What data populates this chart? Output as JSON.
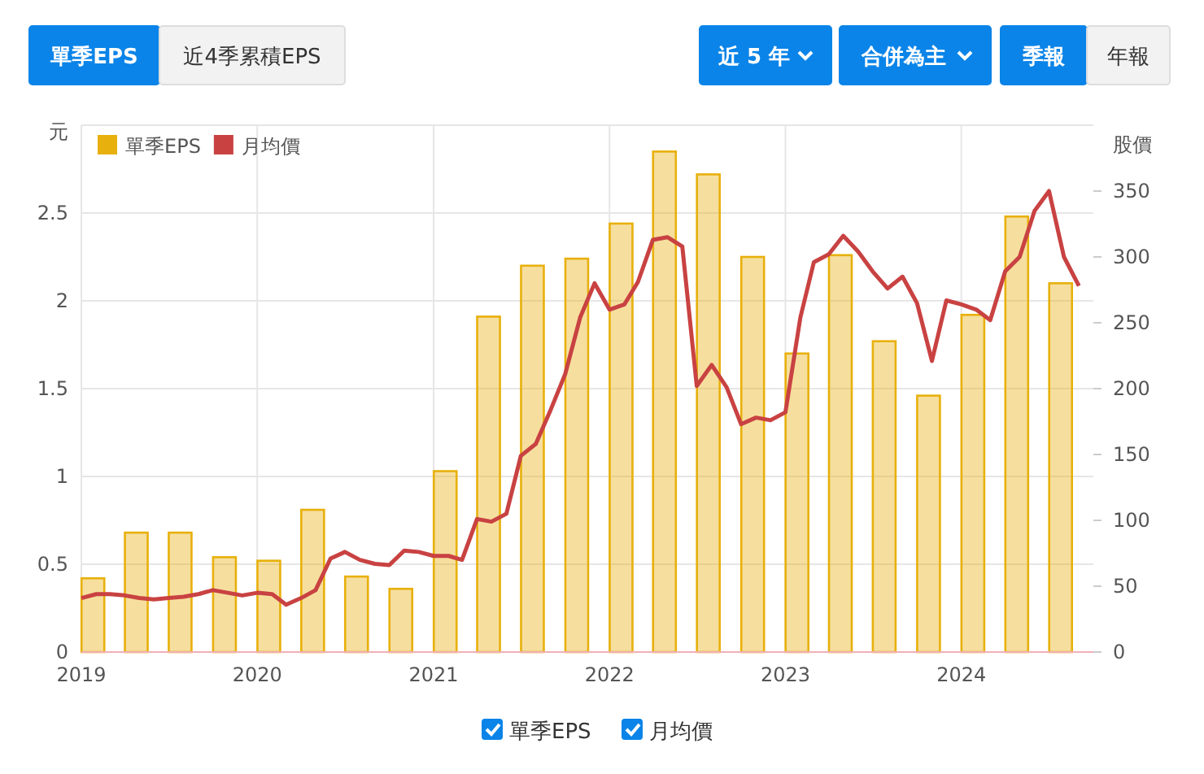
{
  "chart_data": {
    "type": "bar",
    "ylabel": "元",
    "y2label": "股價",
    "annotations": [
      "單季EPS",
      "近4季累積EPS",
      "近 5 年",
      "合併為主",
      "季報",
      "年報"
    ],
    "x": [
      "2019-01-25",
      "2019-04-25",
      "2019-07-25",
      "2019-10-25",
      "2020-01-25",
      "2020-04-25",
      "2020-07-25",
      "2020-10-25",
      "2021-01-25",
      "2021-04-25",
      "2021-07-25",
      "2021-10-25",
      "2022-01-25",
      "2022-04-25",
      "2022-07-25",
      "2022-10-25",
      "2023-01-25",
      "2023-04-25",
      "2023-07-25",
      "2023-10-25",
      "2024-01-25",
      "2024-04-25",
      "2024-07-25"
    ],
    "series": [
      {
        "name": "單季EPS",
        "color": "#e8b00c",
        "values": [
          0.42,
          0.68,
          0.68,
          0.54,
          0.52,
          0.81,
          0.43,
          0.36,
          1.03,
          1.91,
          2.2,
          2.24,
          2.44,
          2.85,
          2.72,
          2.25,
          1.7,
          2.26,
          1.77,
          1.46,
          1.92,
          2.48,
          2.1
        ]
      },
      {
        "name": "月均價",
        "type": "line",
        "axis": "y2",
        "color": "#c94242",
        "x": [
          "2019-01",
          "2019-02",
          "2019-03",
          "2019-04",
          "2019-05",
          "2019-06",
          "2019-07",
          "2019-08",
          "2019-09",
          "2019-10",
          "2019-11",
          "2019-12",
          "2020-01",
          "2020-02",
          "2020-03",
          "2020-04",
          "2020-05",
          "2020-06",
          "2020-07",
          "2020-08",
          "2020-09",
          "2020-10",
          "2020-11",
          "2020-12",
          "2021-01",
          "2021-02",
          "2021-03",
          "2021-04",
          "2021-05",
          "2021-06",
          "2021-07",
          "2021-08",
          "2021-09",
          "2021-10",
          "2021-11",
          "2021-12",
          "2022-01",
          "2022-02",
          "2022-03",
          "2022-04",
          "2022-05",
          "2022-06",
          "2022-07",
          "2022-08",
          "2022-09",
          "2022-10",
          "2022-11",
          "2022-12",
          "2023-01",
          "2023-02",
          "2023-03",
          "2023-04",
          "2023-05",
          "2023-06",
          "2023-07",
          "2023-08",
          "2023-09",
          "2023-10",
          "2023-11",
          "2023-12",
          "2024-01",
          "2024-02",
          "2024-03",
          "2024-04",
          "2024-05",
          "2024-06",
          "2024-07",
          "2024-08",
          "2024-09"
        ],
        "values": [
          41,
          44,
          44,
          43,
          41,
          40,
          41,
          42,
          44,
          47,
          45,
          43,
          45,
          44,
          36,
          41,
          47,
          71,
          76,
          70,
          67,
          66,
          77,
          76,
          73,
          73,
          70,
          101,
          99,
          105,
          149,
          158,
          184,
          211,
          254,
          280,
          260,
          264,
          281,
          313,
          315,
          308,
          202,
          218,
          201,
          173,
          178,
          176,
          182,
          254,
          296,
          302,
          316,
          304,
          289,
          276,
          285,
          265,
          221,
          267,
          264,
          260,
          252,
          289,
          300,
          335,
          350,
          300,
          278
        ]
      }
    ],
    "xlim": [
      "2019-01",
      "2024-10"
    ],
    "xticks": [
      {
        "value": "2019",
        "label": "2019"
      },
      {
        "value": "2020",
        "label": "2020"
      },
      {
        "value": "2021",
        "label": "2021"
      },
      {
        "value": "2022",
        "label": "2022"
      },
      {
        "value": "2023",
        "label": "2023"
      },
      {
        "value": "2024",
        "label": "2024"
      }
    ],
    "ylim": [
      0,
      3
    ],
    "yticks": [
      0,
      0.5,
      1,
      1.5,
      2,
      2.5
    ],
    "y2lim": [
      0,
      400
    ],
    "y2ticks": [
      0,
      50,
      100,
      150,
      200,
      250,
      300,
      350
    ],
    "grid": true,
    "legend": "top left"
  }
}
